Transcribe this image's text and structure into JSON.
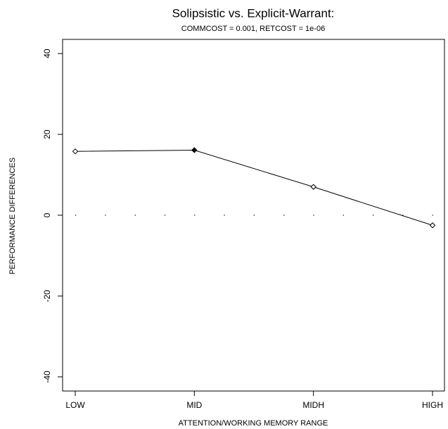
{
  "chart_data": {
    "type": "line",
    "title": "Solipsistic vs. Explicit-Warrant:",
    "subtitle": "COMMCOST = 0.001, RETCOST = 1e-06",
    "x_label": "ATTENTION/WORKING MEMORY RANGE",
    "y_label": "PERFORMANCE DIFFERENCES",
    "categories": [
      "LOW",
      "MID",
      "MIDH",
      "HIGH"
    ],
    "values": [
      15.8,
      16.1,
      7.0,
      -2.5
    ],
    "marker_filled": [
      false,
      true,
      false,
      false
    ],
    "color": "#000000",
    "reference_line": 0,
    "ylim": [
      -43.5,
      43.5
    ],
    "yticks": [
      -40,
      -20,
      0,
      20,
      40
    ]
  }
}
